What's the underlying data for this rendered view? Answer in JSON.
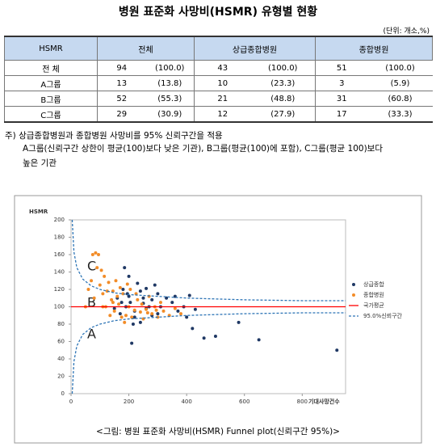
{
  "title": "병원 표준화 사망비(HSMR) 유형별 현황",
  "unit": "(단위: 개소,%)",
  "table": {
    "header": [
      "HSMR",
      "전체",
      "상급종합병원",
      "종합병원"
    ],
    "rows": [
      [
        "전 체",
        "94",
        "(100.0)",
        "43",
        "(100.0)",
        "51",
        "(100.0)"
      ],
      [
        "A그룹",
        "13",
        "(13.8)",
        "10",
        "(23.3)",
        "3",
        "(5.9)"
      ],
      [
        "B그룹",
        "52",
        "(55.3)",
        "21",
        "(48.8)",
        "31",
        "(60.8)"
      ],
      [
        "C그룹",
        "29",
        "(30.9)",
        "12",
        "(27.9)",
        "17",
        "(33.3)"
      ]
    ]
  },
  "notes": [
    "주) 상급종합병원과 종합병원 사망비를 95% 신뢰구간을 적용",
    "A그룹(신뢰구간 상한이 평균(100)보다 낮은 기관), B그룹(평균(100)에 포함), C그룹(평균 100)보다",
    "높은 기관"
  ],
  "chart_data": {
    "type": "scatter",
    "ylabel": "HSMR",
    "xlabel": "기대사망건수",
    "xlim": [
      0,
      950
    ],
    "ylim": [
      0,
      200
    ],
    "xticks": [
      0,
      200,
      400,
      600,
      800
    ],
    "yticks": [
      0,
      20,
      40,
      60,
      80,
      100,
      120,
      140,
      160,
      180,
      200
    ],
    "grid": false,
    "legend": "right",
    "annotations": [
      "C",
      "B",
      "A"
    ],
    "series": [
      {
        "name": "상급종합",
        "color": "#1f3864",
        "x": [
          920,
          650,
          580,
          500,
          460,
          420,
          400,
          410,
          390,
          370,
          350,
          330,
          300,
          290,
          280,
          270,
          260,
          250,
          240,
          230,
          220,
          210,
          205,
          200,
          195,
          190,
          185,
          180,
          175,
          170,
          160,
          150,
          220,
          240,
          260,
          300,
          310,
          280,
          200,
          215,
          250,
          430,
          360
        ],
        "values": [
          50,
          62,
          82,
          66,
          64,
          75,
          88,
          113,
          100,
          95,
          105,
          110,
          92,
          125,
          108,
          100,
          98,
          110,
          118,
          127,
          95,
          58,
          105,
          112,
          115,
          100,
          145,
          120,
          105,
          92,
          110,
          98,
          88,
          82,
          121,
          115,
          100,
          90,
          135,
          80,
          104,
          97,
          112
        ]
      },
      {
        "name": "종합병원",
        "color": "#f28c28",
        "x": [
          60,
          70,
          75,
          85,
          90,
          95,
          80,
          100,
          105,
          110,
          115,
          120,
          125,
          130,
          140,
          145,
          150,
          155,
          160,
          165,
          170,
          175,
          180,
          190,
          195,
          200,
          210,
          220,
          230,
          240,
          250,
          260,
          270,
          280,
          290,
          300,
          310,
          320,
          340,
          360,
          380,
          110,
          135,
          145,
          185,
          205,
          225,
          245,
          265,
          295,
          50
        ],
        "values": [
          120,
          130,
          160,
          162,
          145,
          160,
          110,
          125,
          142,
          115,
          135,
          100,
          118,
          128,
          108,
          105,
          95,
          130,
          112,
          103,
          122,
          88,
          115,
          90,
          126,
          100,
          88,
          96,
          108,
          94,
          86,
          97,
          112,
          92,
          100,
          88,
          105,
          95,
          90,
          98,
          92,
          100,
          90,
          118,
          82,
          120,
          115,
          103,
          93,
          96,
          100
        ]
      },
      {
        "name": "국가평균",
        "color": "#ff0000",
        "type": "line",
        "x": [
          0,
          950
        ],
        "values": [
          100,
          100
        ]
      },
      {
        "name": "95.0%신뢰구간",
        "color": "#2e75b6",
        "type": "band-lines",
        "x": [
          4,
          10,
          20,
          40,
          70,
          100,
          150,
          200,
          300,
          400,
          600,
          800,
          950
        ],
        "values": [
          200,
          163,
          145,
          132,
          124,
          120,
          116,
          114,
          112,
          110,
          108,
          107,
          107
        ],
        "lower": [
          0,
          37,
          55,
          68,
          76,
          80,
          84,
          86,
          88,
          90,
          92,
          93,
          93
        ]
      }
    ]
  },
  "caption": "<그림: 병원 표준화 사망비(HSMR) Funnel plot(신뢰구간 95%)>"
}
